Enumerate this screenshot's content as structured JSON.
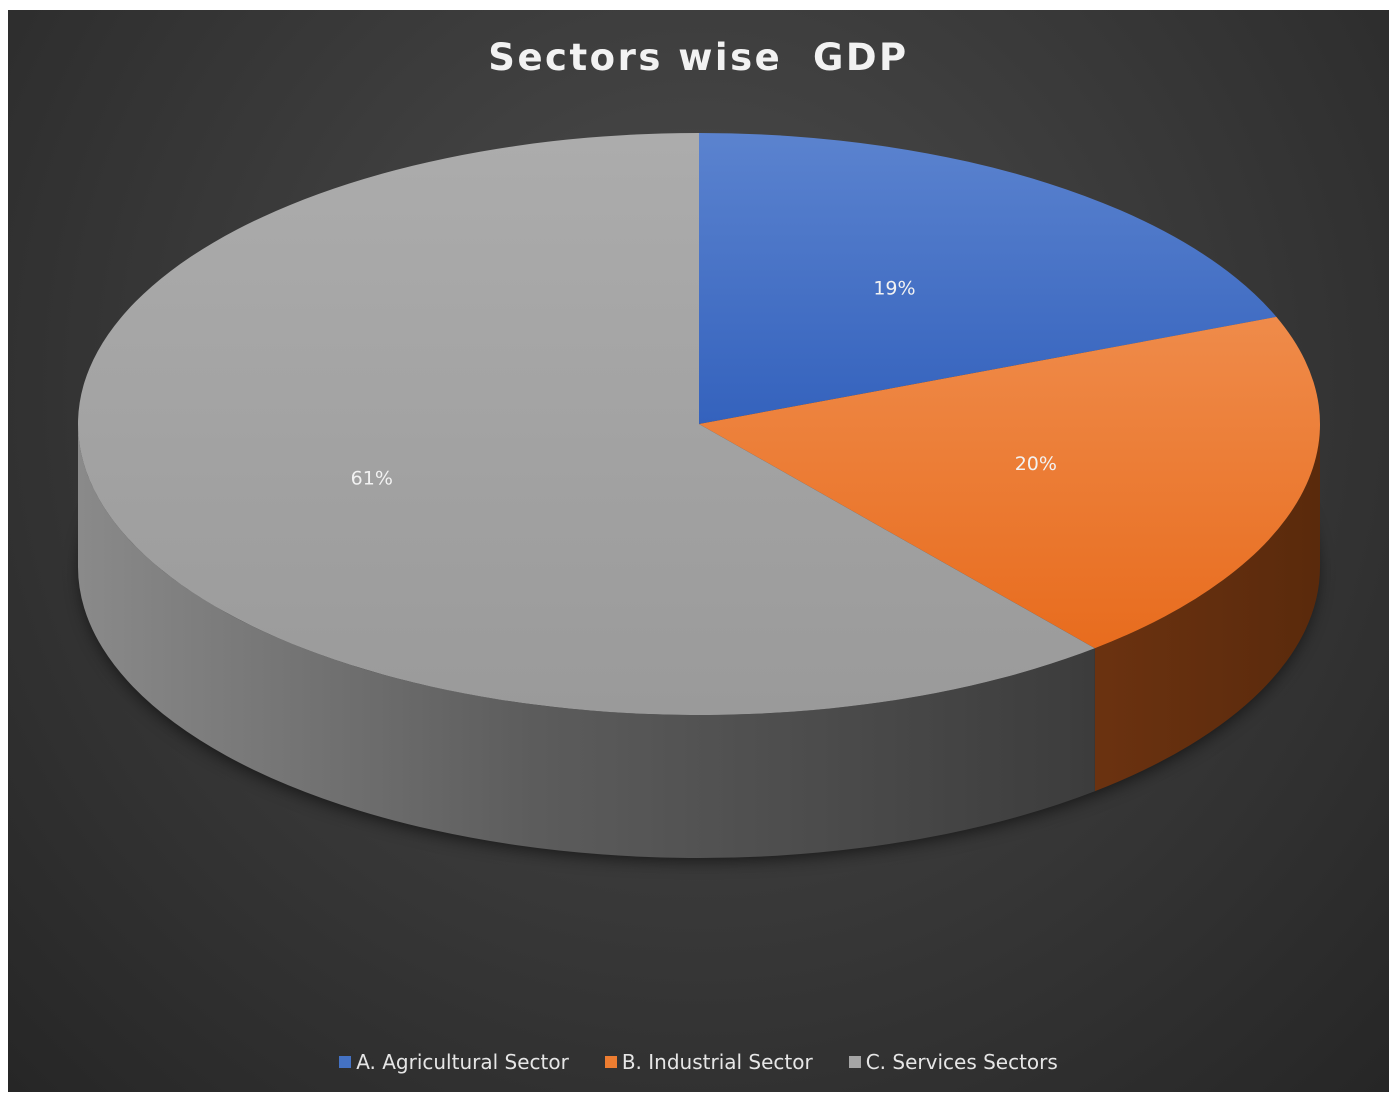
{
  "chart_data": {
    "type": "pie",
    "title": "Sectors wise  GDP",
    "categories": [
      "A. Agricultural Sector",
      "B. Industrial Sector",
      "C. Services Sectors"
    ],
    "values": [
      19,
      20,
      61
    ],
    "data_labels": [
      "19%",
      "20%",
      "61%"
    ],
    "colors": [
      "#4472c4",
      "#ed7d31",
      "#a5a5a5"
    ],
    "style": "3d",
    "legend_position": "bottom"
  }
}
